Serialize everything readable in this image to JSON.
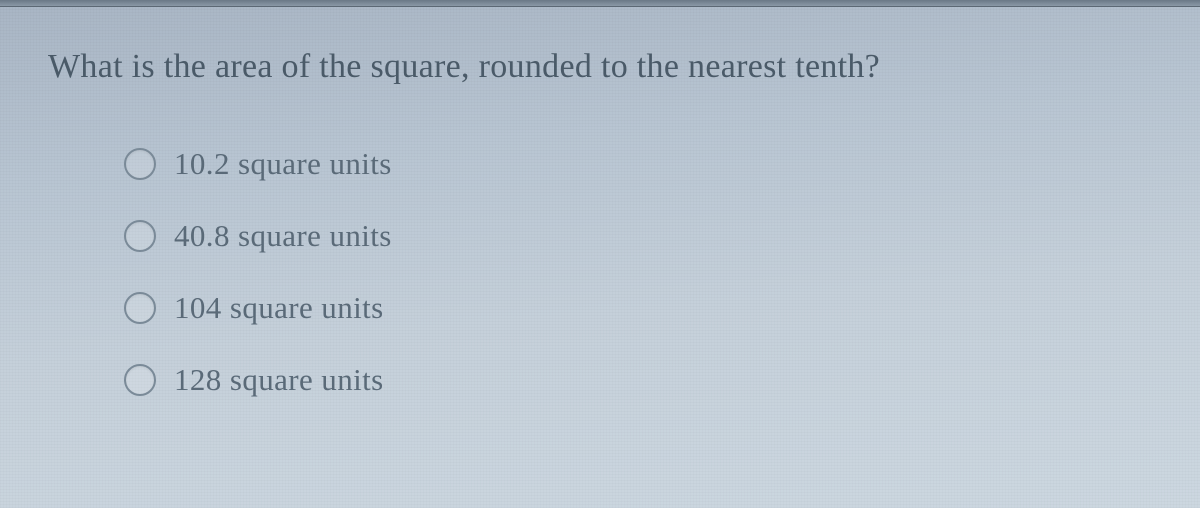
{
  "question": {
    "text": "What is the area of the square, rounded to the nearest tenth?",
    "font_size": 34,
    "color": "#4a5a68"
  },
  "options": [
    {
      "label": "10.2 square units",
      "selected": false
    },
    {
      "label": "40.8 square units",
      "selected": false
    },
    {
      "label": "104 square units",
      "selected": false
    },
    {
      "label": "128 square units",
      "selected": false
    }
  ],
  "styling": {
    "background_gradient": [
      "#a8b5c4",
      "#b8c5d2",
      "#c5d0da",
      "#ccd7e0"
    ],
    "option_color": "#5a6a78",
    "radio_border": "#7a8a98",
    "option_font_size": 31
  }
}
